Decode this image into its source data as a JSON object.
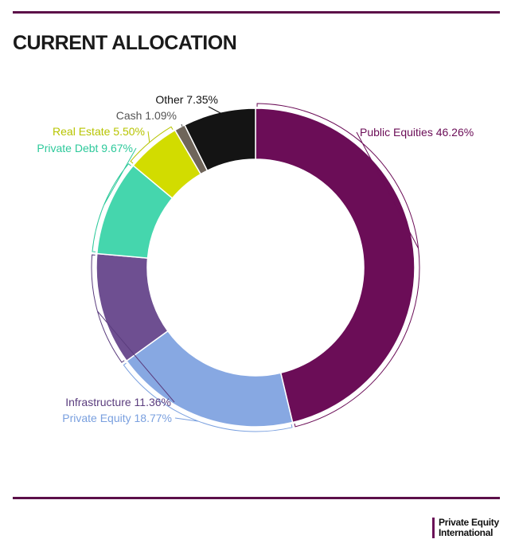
{
  "header": {
    "title": "CURRENT ALLOCATION"
  },
  "brand": {
    "line1": "Private Equity",
    "line2": "International"
  },
  "chart_data": {
    "type": "pie",
    "title": "CURRENT ALLOCATION",
    "donut": true,
    "slices": [
      {
        "label": "Public Equities 46.26%",
        "name": "Public Equities",
        "value": 46.26,
        "color": "#6b0d57"
      },
      {
        "label": "Private Equity 18.77%",
        "name": "Private Equity",
        "value": 18.77,
        "color": "#87a8e2"
      },
      {
        "label": "Infrastructure 11.36%",
        "name": "Infrastructure",
        "value": 11.36,
        "color": "#6e4f91"
      },
      {
        "label": "Private Debt 9.67%",
        "name": "Private Debt",
        "value": 9.67,
        "color": "#45d6ad"
      },
      {
        "label": "Real Estate 5.50%",
        "name": "Real Estate",
        "value": 5.5,
        "color": "#d2dc00"
      },
      {
        "label": "Cash 1.09%",
        "name": "Cash",
        "value": 1.09,
        "color": "#6f655a"
      },
      {
        "label": "Other 7.35%",
        "name": "Other",
        "value": 7.35,
        "color": "#141414"
      }
    ],
    "label_colors": {
      "Public Equities": "#6b0d57",
      "Private Equity": "#7aa0df",
      "Infrastructure": "#5b3d7e",
      "Private Debt": "#2ec99b",
      "Real Estate": "#b7c400",
      "Cash": "#555555",
      "Other": "#111111"
    }
  }
}
